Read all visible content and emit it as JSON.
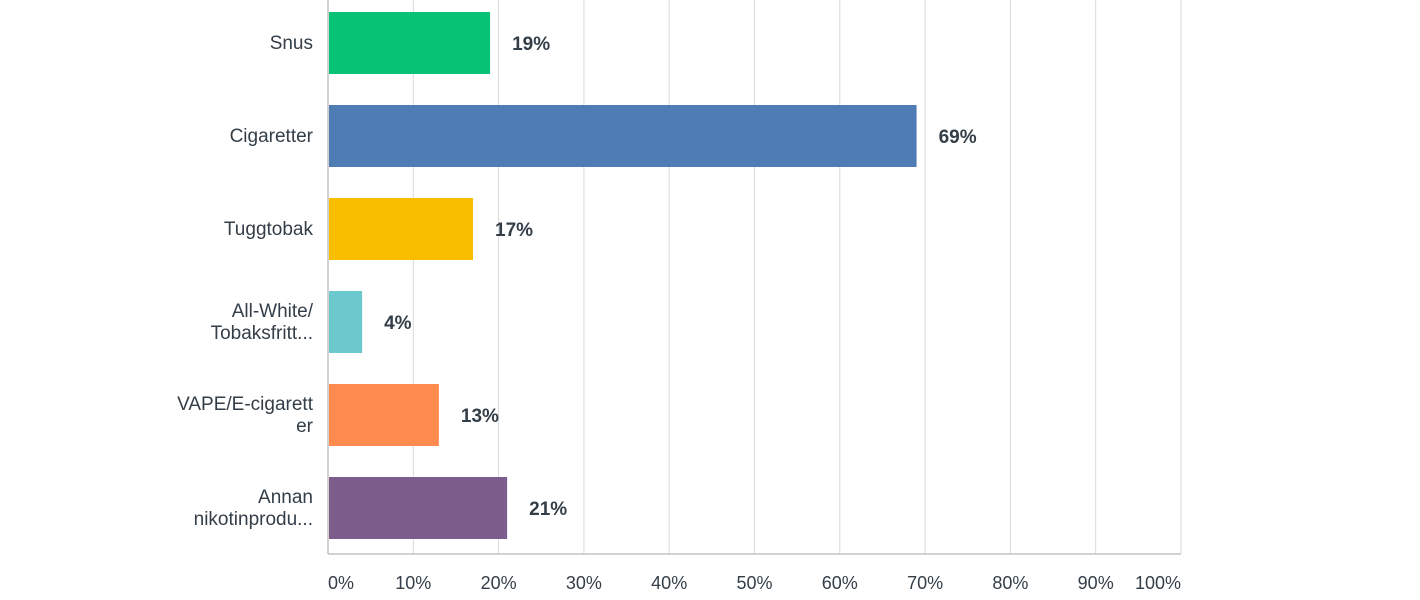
{
  "chart_data": {
    "type": "bar",
    "orientation": "horizontal",
    "categories": [
      [
        "Snus"
      ],
      [
        "Cigaretter"
      ],
      [
        "Tuggtobak"
      ],
      [
        "All-White/",
        "Tobaksfritt..."
      ],
      [
        "VAPE/E-cigarett",
        "er"
      ],
      [
        "Annan",
        "nikotinprodu..."
      ]
    ],
    "values": [
      19,
      69,
      17,
      4,
      13,
      21
    ],
    "value_labels": [
      "19%",
      "69%",
      "17%",
      "4%",
      "13%",
      "21%"
    ],
    "colors": [
      "#08c276",
      "#507cb6",
      "#f9be00",
      "#6bc8cd",
      "#ff8b4f",
      "#7c5d8c"
    ],
    "xlim": [
      0,
      100
    ],
    "xticks": [
      "0%",
      "10%",
      "20%",
      "30%",
      "40%",
      "50%",
      "60%",
      "70%",
      "80%",
      "90%",
      "100%"
    ],
    "grid": true,
    "legend": "none",
    "title": "",
    "xlabel": "",
    "ylabel": ""
  }
}
